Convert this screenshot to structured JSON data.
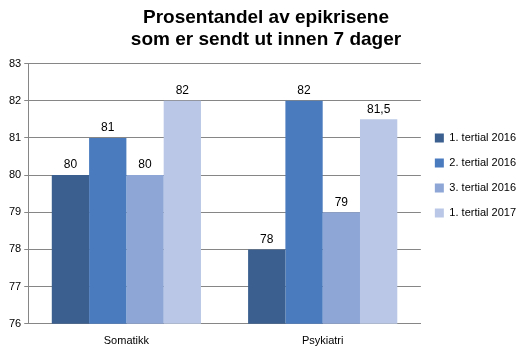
{
  "chart_data": {
    "type": "bar",
    "title": "Prosentandel av epikrisene som er sendt ut innen 7 dager",
    "categories": [
      "Somatikk",
      "Psykiatri"
    ],
    "series": [
      {
        "name": "1. tertial 2016",
        "color": "#3b5f8e",
        "values": [
          80,
          78
        ],
        "value_labels": [
          "80",
          "78"
        ]
      },
      {
        "name": "2. tertial 2016",
        "color": "#4a7bbf",
        "values": [
          81,
          82
        ],
        "value_labels": [
          "81",
          "82"
        ]
      },
      {
        "name": "3. tertial 2016",
        "color": "#8ea6d6",
        "values": [
          80,
          79
        ],
        "value_labels": [
          "80",
          "79"
        ]
      },
      {
        "name": "1. tertial 2017",
        "color": "#bac7e6",
        "values": [
          82,
          81.5
        ],
        "value_labels": [
          "82",
          "81,5"
        ]
      }
    ],
    "ylim": [
      76,
      83
    ],
    "yticks": [
      76,
      77,
      78,
      79,
      80,
      81,
      82,
      83
    ],
    "grid": true,
    "legend": "right",
    "data_labels": true
  }
}
